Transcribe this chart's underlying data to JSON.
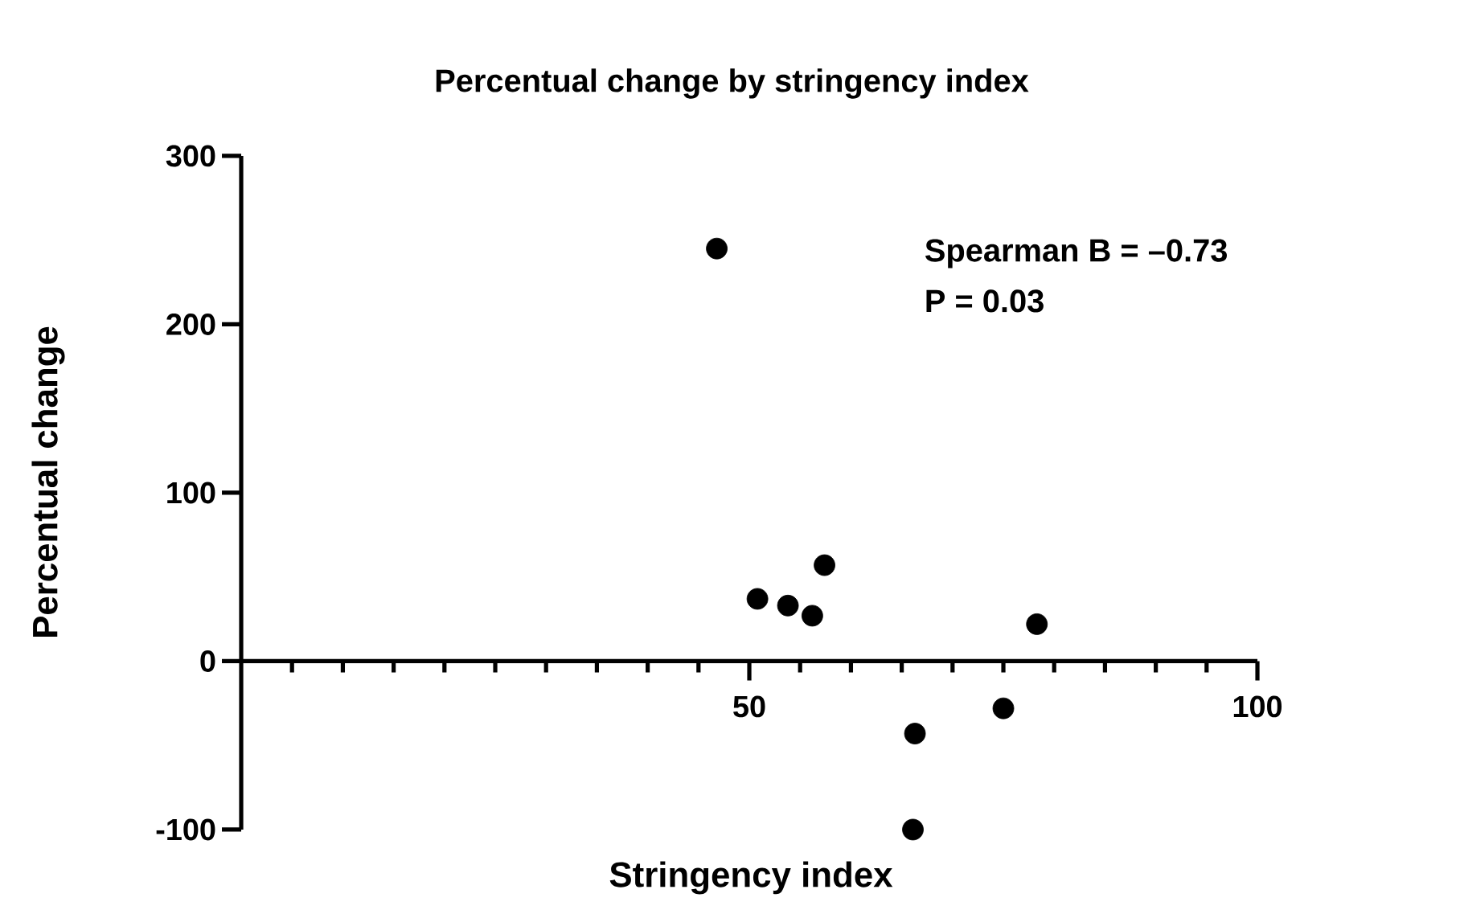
{
  "chart_data": {
    "type": "scatter",
    "title": "Percentual change by stringency index",
    "xlabel": "Stringency index",
    "ylabel": "Percentual change",
    "annotations": [
      "Spearman B = –0.73",
      "P = 0.03"
    ],
    "xlim": [
      0,
      100
    ],
    "ylim": [
      -100,
      300
    ],
    "xticks": [
      {
        "value": 5,
        "label": null
      },
      {
        "value": 10,
        "label": null
      },
      {
        "value": 15,
        "label": null
      },
      {
        "value": 20,
        "label": null
      },
      {
        "value": 25,
        "label": null
      },
      {
        "value": 30,
        "label": null
      },
      {
        "value": 35,
        "label": null
      },
      {
        "value": 40,
        "label": null
      },
      {
        "value": 45,
        "label": null
      },
      50,
      {
        "value": 55,
        "label": null
      },
      {
        "value": 60,
        "label": null
      },
      {
        "value": 65,
        "label": null
      },
      {
        "value": 70,
        "label": null
      },
      {
        "value": 75,
        "label": null
      },
      {
        "value": 80,
        "label": null
      },
      {
        "value": 85,
        "label": null
      },
      {
        "value": 90,
        "label": null
      },
      {
        "value": 95,
        "label": null
      },
      100
    ],
    "yticks": [
      -100,
      0,
      100,
      200,
      300
    ],
    "series": [
      {
        "color": "#000000",
        "x": [
          46.8,
          50.8,
          53.8,
          56.2,
          57.4,
          66.3,
          66.1,
          75.0,
          78.3
        ],
        "values": [
          245,
          37,
          33,
          27,
          57,
          -43,
          -100,
          -28,
          22
        ]
      }
    ]
  }
}
